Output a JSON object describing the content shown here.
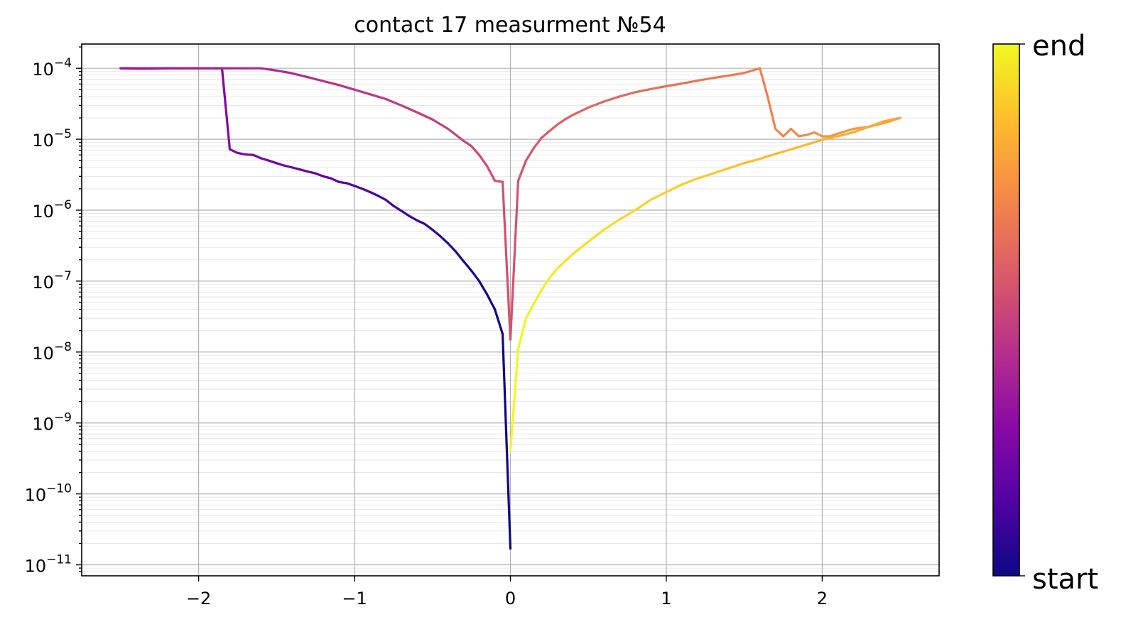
{
  "chart_data": {
    "type": "line",
    "title": "contact 17 measurment №54",
    "xlabel": "",
    "ylabel": "",
    "xlim": [
      -2.75,
      2.75
    ],
    "ylim": [
      7e-12,
      0.00022
    ],
    "yscale": "log",
    "grid": true,
    "x_ticks": [
      -2,
      -1,
      0,
      1,
      2
    ],
    "x_tick_labels": [
      "−2",
      "−1",
      "0",
      "1",
      "2"
    ],
    "y_ticks": [
      1e-11,
      1e-10,
      1e-09,
      1e-08,
      1e-07,
      1e-06,
      1e-05,
      0.0001
    ],
    "y_tick_labels": [
      {
        "base": "10",
        "exp": "−11"
      },
      {
        "base": "10",
        "exp": "−10"
      },
      {
        "base": "10",
        "exp": "−9"
      },
      {
        "base": "10",
        "exp": "−8"
      },
      {
        "base": "10",
        "exp": "−7"
      },
      {
        "base": "10",
        "exp": "−6"
      },
      {
        "base": "10",
        "exp": "−5"
      },
      {
        "base": "10",
        "exp": "−4"
      }
    ],
    "colormap": "plasma",
    "colorbar": {
      "labels": [
        "start",
        "end"
      ],
      "stops": [
        "#0d0887",
        "#5302a3",
        "#8b0aa5",
        "#b83289",
        "#db5c68",
        "#f48849",
        "#febd2a",
        "#f0f921"
      ]
    },
    "series": [
      {
        "x": [
          0,
          -0.05,
          -0.1,
          -0.15,
          -0.2,
          -0.25,
          -0.3,
          -0.35,
          -0.4,
          -0.45,
          -0.5,
          -0.55,
          -0.6,
          -0.65,
          -0.7,
          -0.75,
          -0.8,
          -0.85,
          -0.9,
          -0.95,
          -1.0,
          -1.05,
          -1.1,
          -1.15,
          -1.2,
          -1.25,
          -1.3,
          -1.35,
          -1.4,
          -1.45,
          -1.5,
          -1.55,
          -1.6,
          -1.65,
          -1.7,
          -1.75,
          -1.8,
          -1.85,
          -1.9,
          -2.0,
          -2.1,
          -2.2,
          -2.3,
          -2.4,
          -2.5,
          -2.5,
          -2.4,
          -2.3,
          -2.2,
          -2.1,
          -2.0,
          -1.9,
          -1.8,
          -1.7,
          -1.6,
          -1.5,
          -1.4,
          -1.3,
          -1.2,
          -1.1,
          -1.0,
          -0.9,
          -0.8,
          -0.7,
          -0.6,
          -0.5,
          -0.4,
          -0.3,
          -0.25,
          -0.2,
          -0.15,
          -0.1,
          -0.05,
          0,
          0.05,
          0.1,
          0.15,
          0.2,
          0.25,
          0.3,
          0.35,
          0.4,
          0.5,
          0.6,
          0.7,
          0.8,
          0.9,
          1.0,
          1.1,
          1.2,
          1.3,
          1.4,
          1.5,
          1.6,
          1.65,
          1.7,
          1.75,
          1.8,
          1.85,
          1.9,
          1.95,
          2.0,
          2.05,
          2.1,
          2.2,
          2.3,
          2.4,
          2.5,
          2.5,
          2.4,
          2.3,
          2.2,
          2.1,
          2.0,
          1.9,
          1.8,
          1.7,
          1.6,
          1.5,
          1.4,
          1.3,
          1.2,
          1.1,
          1.0,
          0.9,
          0.8,
          0.7,
          0.6,
          0.5,
          0.4,
          0.35,
          0.3,
          0.25,
          0.2,
          0.15,
          0.1,
          0.05,
          0
        ],
        "y": [
          1.7e-11,
          1.8e-08,
          4e-08,
          6.5e-08,
          1e-07,
          1.4e-07,
          1.9e-07,
          2.6e-07,
          3.4e-07,
          4.3e-07,
          5.3e-07,
          6.4e-07,
          7.2e-07,
          8.3e-07,
          9.8e-07,
          1.15e-06,
          1.4e-06,
          1.6e-06,
          1.8e-06,
          2e-06,
          2.2e-06,
          2.4e-06,
          2.5e-06,
          2.8e-06,
          3e-06,
          3.3e-06,
          3.5e-06,
          3.75e-06,
          4e-06,
          4.25e-06,
          4.6e-06,
          5e-06,
          5.4e-06,
          6e-06,
          6.1e-06,
          6.4e-06,
          7.2e-06,
          0.0001,
          0.0001,
          0.0001,
          0.0001,
          0.0001,
          9.9e-05,
          9.9e-05,
          0.0001,
          0.0001,
          0.0001,
          0.0001,
          0.0001,
          0.0001,
          0.0001,
          0.0001,
          0.0001,
          0.0001,
          0.0001,
          9.3e-05,
          8.5e-05,
          7.5e-05,
          6.6e-05,
          5.8e-05,
          5e-05,
          4.3e-05,
          3.7e-05,
          3e-05,
          2.4e-05,
          1.9e-05,
          1.4e-05,
          9.5e-06,
          8e-06,
          6e-06,
          4.2e-06,
          2.6e-06,
          2.5e-06,
          1.5e-08,
          2.6e-06,
          5e-06,
          7.5e-06,
          1.05e-05,
          1.3e-05,
          1.6e-05,
          1.9e-05,
          2.2e-05,
          2.8e-05,
          3.4e-05,
          4e-05,
          4.6e-05,
          5.1e-05,
          5.6e-05,
          6.1e-05,
          6.7e-05,
          7.3e-05,
          7.9e-05,
          8.6e-05,
          0.0001,
          4e-05,
          1.4e-05,
          1.1e-05,
          1.4e-05,
          1.1e-05,
          1.15e-05,
          1.25e-05,
          1.1e-05,
          1.1e-05,
          1.2e-05,
          1.4e-05,
          1.5e-05,
          1.7e-05,
          2e-05,
          2e-05,
          1.8e-05,
          1.5e-05,
          1.25e-05,
          1.1e-05,
          9.8e-06,
          8.4e-06,
          7.2e-06,
          6.2e-06,
          5.3e-06,
          4.6e-06,
          3.9e-06,
          3.3e-06,
          2.8e-06,
          2.3e-06,
          1.8e-06,
          1.4e-06,
          1e-06,
          7.4e-07,
          5.3e-07,
          3.6e-07,
          2.4e-07,
          1.9e-07,
          1.5e-07,
          1.1e-07,
          7.5e-08,
          4.8e-08,
          3e-08,
          1.1e-08,
          4e-10
        ]
      }
    ]
  }
}
